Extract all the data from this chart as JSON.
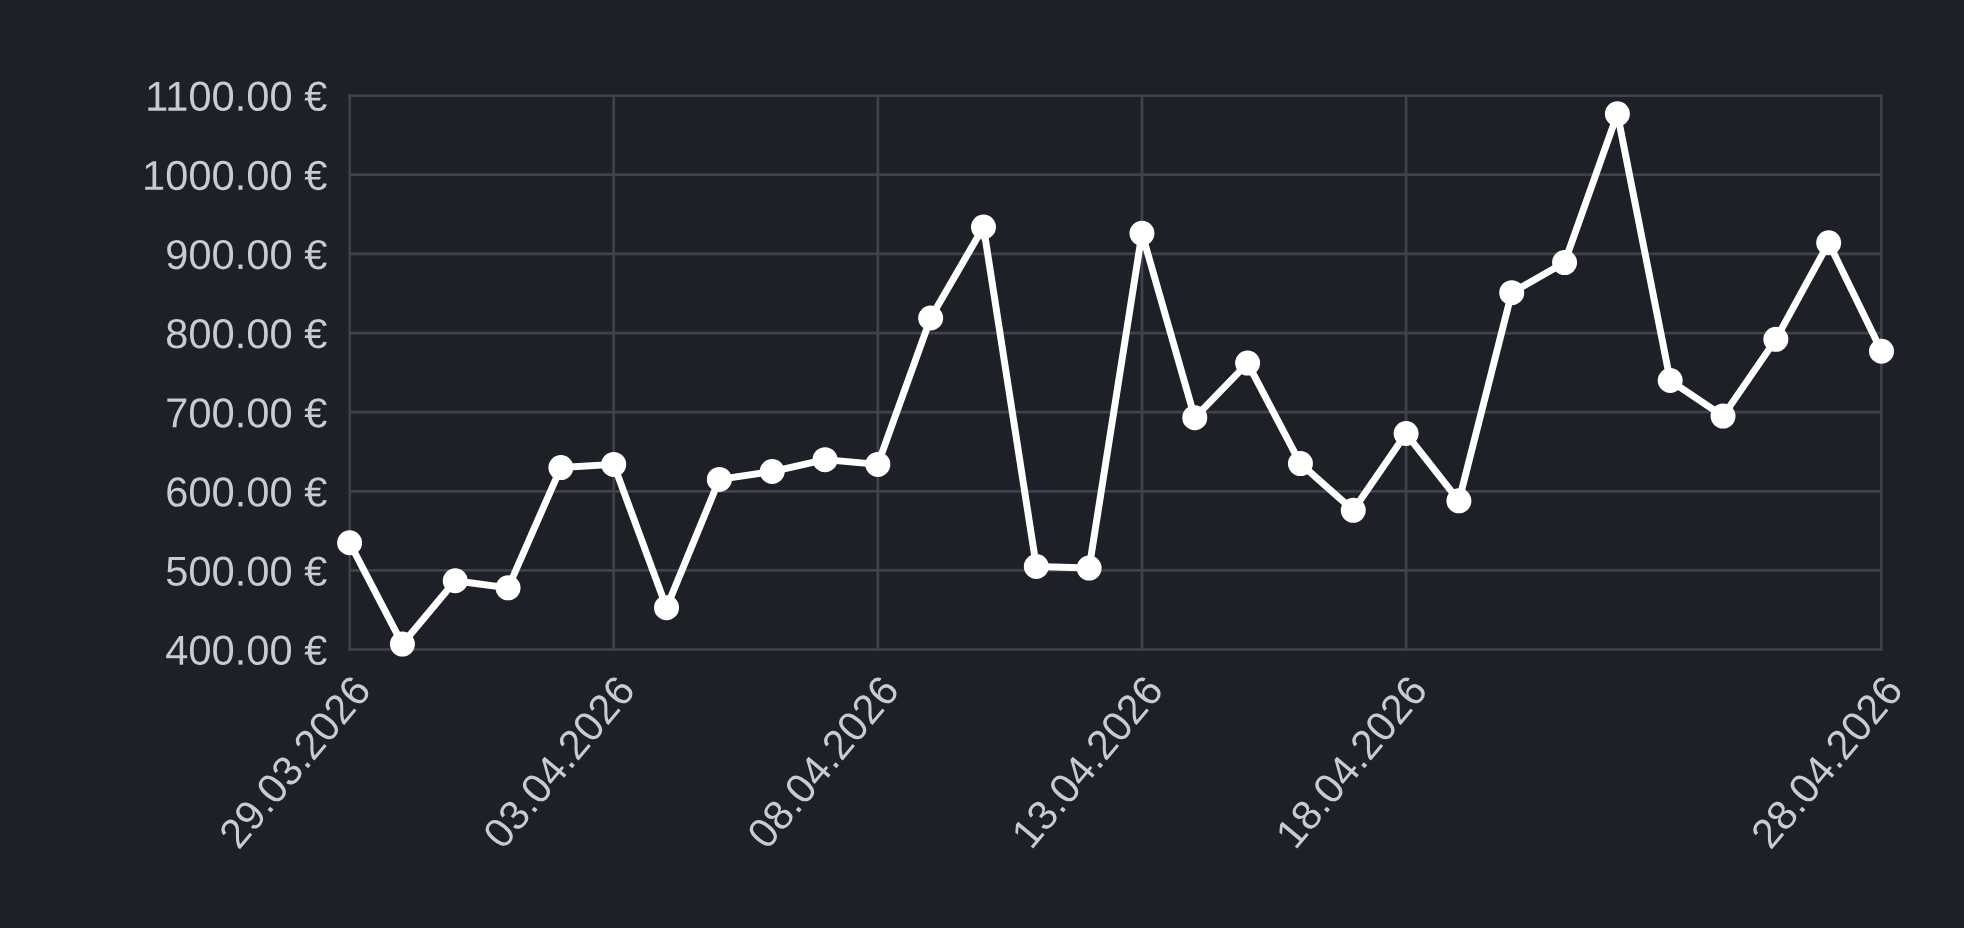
{
  "chart_data": {
    "type": "line",
    "categories": [
      "29.03.2026",
      null,
      null,
      null,
      null,
      "03.04.2026",
      null,
      null,
      null,
      null,
      "08.04.2026",
      null,
      null,
      null,
      null,
      "13.04.2026",
      null,
      null,
      null,
      null,
      "18.04.2026",
      null,
      null,
      null,
      null,
      null,
      null,
      null,
      null,
      "28.04.2026"
    ],
    "series": [
      {
        "color": "#ffffff",
        "values": [
          535,
          407,
          487,
          478,
          630,
          634,
          453,
          615,
          625,
          640,
          634,
          819,
          934,
          505,
          503,
          926,
          693,
          762,
          635,
          576,
          673,
          588,
          851,
          889,
          1077,
          740,
          695,
          792,
          914,
          777
        ]
      }
    ],
    "ylim": [
      400,
      1100
    ],
    "yticks": [
      {
        "value": 400,
        "label": "400.00 €"
      },
      {
        "value": 500,
        "label": "500.00 €"
      },
      {
        "value": 600,
        "label": "600.00 €"
      },
      {
        "value": 700,
        "label": "700.00 €"
      },
      {
        "value": 800,
        "label": "800.00 €"
      },
      {
        "value": 900,
        "label": "900.00 €"
      },
      {
        "value": 1000,
        "label": "1000.00 €"
      },
      {
        "value": 1100,
        "label": "1100.00 €"
      }
    ],
    "grid": true,
    "marker": "circle",
    "line_style": "solid"
  }
}
